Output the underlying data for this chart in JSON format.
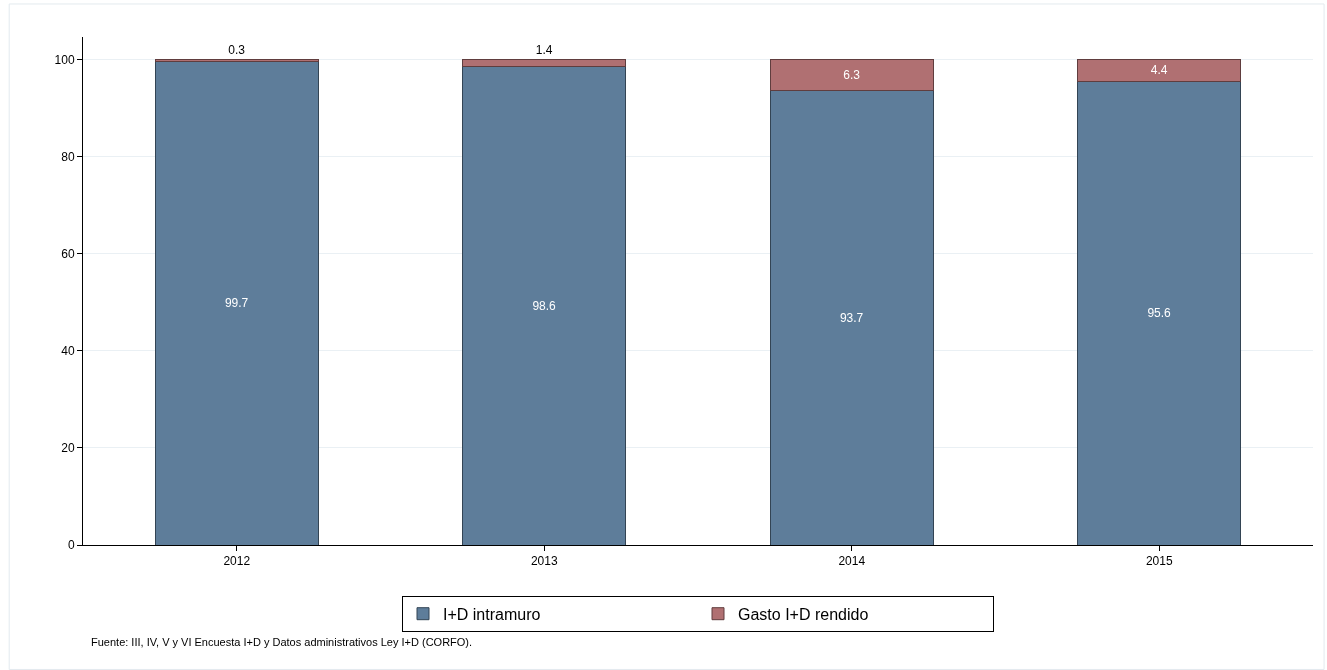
{
  "chart_data": {
    "type": "bar",
    "stacked": true,
    "categories": [
      "2012",
      "2013",
      "2014",
      "2015"
    ],
    "series": [
      {
        "name": "I+D intramuro",
        "color": "#5e7d9a",
        "values": [
          99.7,
          98.6,
          93.7,
          95.6
        ]
      },
      {
        "name": "Gasto I+D rendido",
        "color": "#b07072",
        "values": [
          0.3,
          1.4,
          6.3,
          4.4
        ]
      }
    ],
    "ylim": [
      0,
      104.7
    ],
    "yticks": [
      0,
      20,
      40,
      60,
      80,
      100
    ],
    "grid": "y",
    "legend": "bottom",
    "data_labels": true,
    "annotations": [
      "Fuente: III, IV, V y VI Encuesta I+D y Datos administrativos Ley I+D (CORFO)."
    ]
  }
}
